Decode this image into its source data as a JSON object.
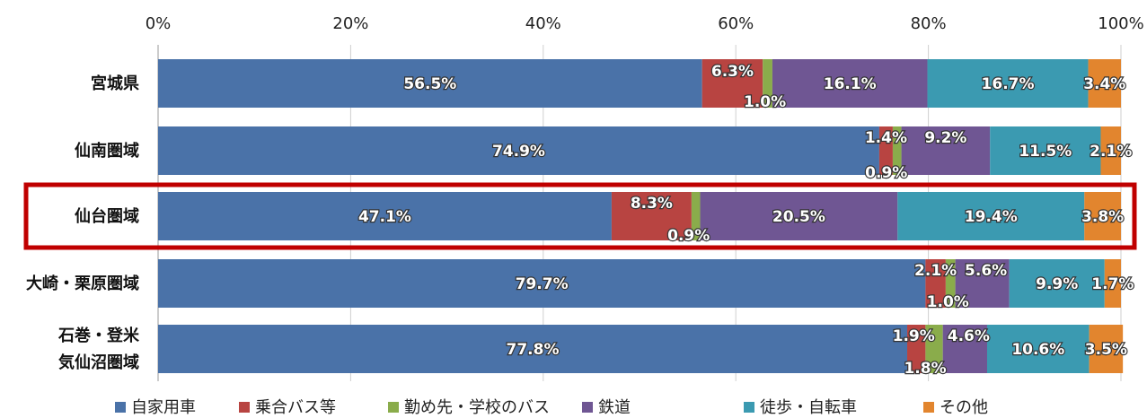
{
  "chart_data": {
    "type": "bar",
    "orientation": "horizontal",
    "stacked": true,
    "xlim": [
      0,
      100
    ],
    "x_ticks": [
      "0%",
      "20%",
      "40%",
      "60%",
      "80%",
      "100%"
    ],
    "categories": [
      [
        "宮城県"
      ],
      [
        "仙南圏域"
      ],
      [
        "仙台圏域"
      ],
      [
        "大崎・栗原圏域"
      ],
      [
        "石巻・登米",
        "気仙沼圏域"
      ]
    ],
    "highlighted_category": "仙台圏域",
    "highlight_color": "#c00000",
    "series": [
      {
        "name": "自家用車",
        "color": "#4a72a8",
        "values": [
          56.5,
          74.9,
          47.1,
          79.7,
          77.8
        ],
        "labels": [
          "56.5%",
          "74.9%",
          "47.1%",
          "79.7%",
          "77.8%"
        ]
      },
      {
        "name": "乗合バス等",
        "color": "#b84441",
        "values": [
          6.3,
          1.4,
          8.3,
          2.1,
          1.9
        ],
        "labels": [
          "6.3%",
          "1.4%",
          "8.3%",
          "2.1%",
          "1.9%"
        ]
      },
      {
        "name": "勤め先・学校のバス",
        "color": "#8aac4b",
        "values": [
          1.0,
          0.9,
          0.9,
          1.0,
          1.8
        ],
        "labels": [
          "1.0%",
          "0.9%",
          "0.9%",
          "1.0%",
          "1.8%"
        ]
      },
      {
        "name": "鉄道",
        "color": "#6f5693",
        "values": [
          16.1,
          9.2,
          20.5,
          5.6,
          4.6
        ],
        "labels": [
          "16.1%",
          "9.2%",
          "20.5%",
          "5.6%",
          "4.6%"
        ]
      },
      {
        "name": "徒歩・自転車",
        "color": "#3b9ab1",
        "values": [
          16.7,
          11.5,
          19.4,
          9.9,
          10.6
        ],
        "labels": [
          "16.7%",
          "11.5%",
          "19.4%",
          "9.9%",
          "10.6%"
        ]
      },
      {
        "name": "その他",
        "color": "#e2852e",
        "values": [
          3.4,
          2.1,
          3.8,
          1.7,
          3.5
        ],
        "labels": [
          "3.4%",
          "2.1%",
          "3.8%",
          "1.7%",
          "3.5%"
        ]
      }
    ],
    "grid": true,
    "legend_position": "bottom"
  }
}
